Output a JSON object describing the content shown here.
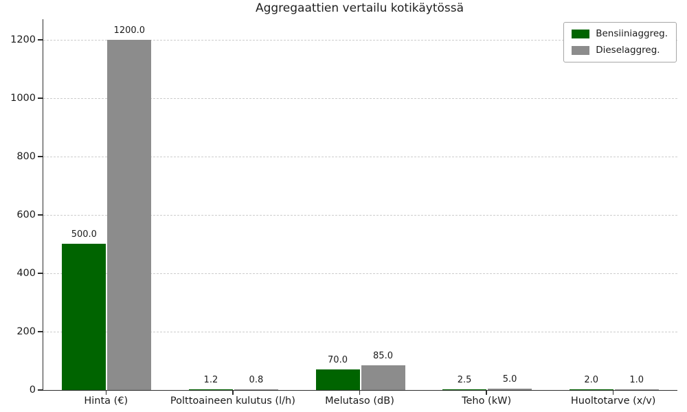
{
  "chart_data": {
    "type": "bar",
    "title": "Aggregaattien vertailu kotikäytössä",
    "categories": [
      "Hinta (€)",
      "Polttoaineen kulutus (l/h)",
      "Melutaso (dB)",
      "Teho (kW)",
      "Huoltotarve (x/v)"
    ],
    "series": [
      {
        "name": "Bensiiniaggreg.",
        "color": "#006400",
        "values": [
          500.0,
          1.2,
          70.0,
          2.5,
          2.0
        ]
      },
      {
        "name": "Dieselaggreg.",
        "color": "#8c8c8c",
        "values": [
          1200.0,
          0.8,
          85.0,
          5.0,
          1.0
        ]
      }
    ],
    "xlabel": "",
    "ylabel": "",
    "ylim": [
      0,
      1270
    ],
    "yticks": [
      0,
      200,
      400,
      600,
      800,
      1000,
      1200
    ],
    "grid": true,
    "grid_style": "dashed",
    "legend_position": "upper right",
    "bar_value_labels": true,
    "value_label_decimals": 1
  },
  "colors": {
    "axis": "#2b2b2b",
    "grid": "#cccccc",
    "background": "#ffffff",
    "text": "#1a1a1a"
  }
}
